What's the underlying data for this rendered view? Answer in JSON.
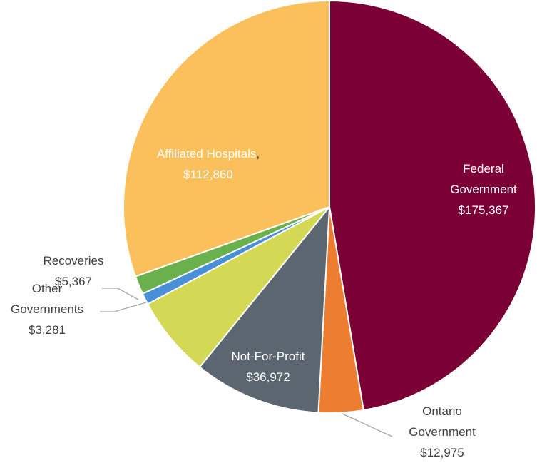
{
  "chart_data": {
    "type": "pie",
    "categories": [
      "Federal Government",
      "Ontario Government",
      "Not-For-Profit",
      null,
      "Other Governments",
      "Recoveries",
      "Affiliated Hospitals"
    ],
    "values": [
      175367,
      12975,
      36972,
      23500,
      3281,
      5367,
      112860
    ],
    "value_labels": [
      "$175,367",
      "$12,975",
      "$36,972",
      null,
      "$3,281",
      "$5,367",
      "$112,860"
    ],
    "colors": [
      "#7a0036",
      "#ed7d31",
      "#5b6670",
      "#d4d955",
      "#4a90d9",
      "#6ab04c",
      "#fbbf5b"
    ],
    "label_separator": ","
  }
}
